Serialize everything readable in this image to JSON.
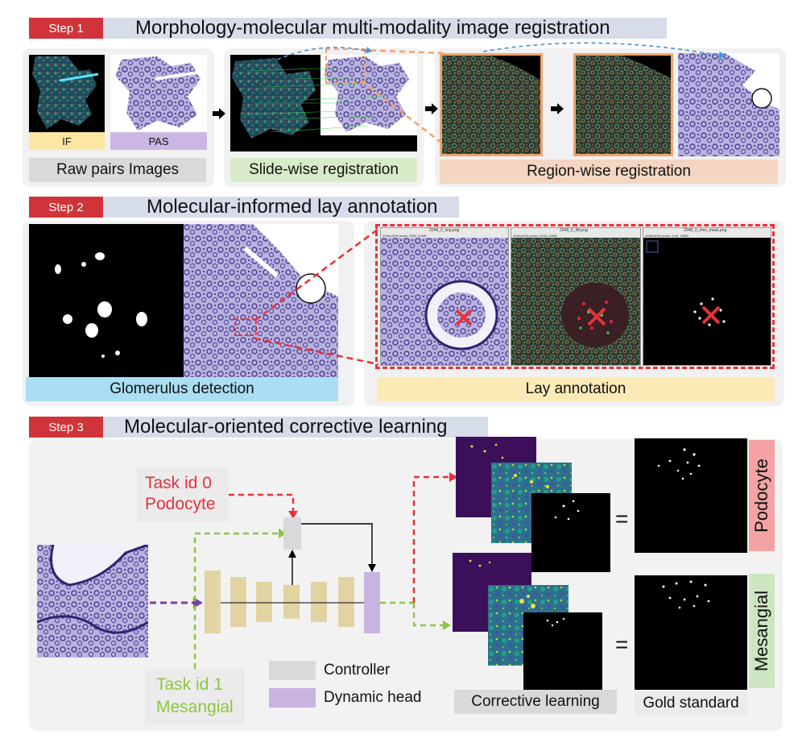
{
  "step1": {
    "badge": "Step 1",
    "title": "Morphology-molecular multi-modality image registration",
    "if_label": "IF",
    "pas_label": "PAS",
    "raw_label": "Raw pairs Images",
    "slide_label": "Slide-wise registration",
    "region_label": "Region-wise registration"
  },
  "step2": {
    "badge": "Step 2",
    "title": "Molecular-informed lay annotation",
    "detect_label": "Glomerulus detection",
    "lay_label": "Lay annotation",
    "window_titles": [
      "2048_0_img.png",
      "2048_0_IM.png",
      "2048_0_mes_mask.png"
    ],
    "window_info": [
      "4096x4096 pixels; RGB; 64MB",
      "4096x4096 pixels; RGB; 64MB",
      "4096x4096 pixels; 8-bit; 16MB"
    ]
  },
  "step3": {
    "badge": "Step 3",
    "title": "Molecular-oriented corrective learning",
    "task0_line1": "Task id 0",
    "task0_line2": "Podocyte",
    "task1_line1": "Task id 1",
    "task1_line2": "Mesangial",
    "legend_controller": "Controller",
    "legend_dynamic": "Dynamic head",
    "corrective_label": "Corrective learning",
    "gold_label": "Gold standard",
    "podocyte_label": "Podocyte",
    "mesangial_label": "Mesangial",
    "equals": "="
  },
  "colors": {
    "step_red": "#d0343a",
    "step_bar": "#d7dce9",
    "if_yellow": "#fbe7a1",
    "pas_purple": "#c9b8e3",
    "raw_gray": "#d9d9d9",
    "slide_green": "#d9ecc9",
    "region_peach": "#f4d6c2",
    "detect_blue": "#a9def3",
    "lay_yellow": "#fbe9b6",
    "task_red": "#e8313a",
    "task_green": "#8dc63f",
    "encoder_tan": "#e2d3a3",
    "controller_gray": "#d9d9d9",
    "dynamic_purple": "#c9b3df",
    "podocyte_pink": "#f3a3a3",
    "mesangial_green": "#cde6c1",
    "arrow_blue": "#4b8fd6",
    "arrow_orange": "#f2a36b"
  }
}
